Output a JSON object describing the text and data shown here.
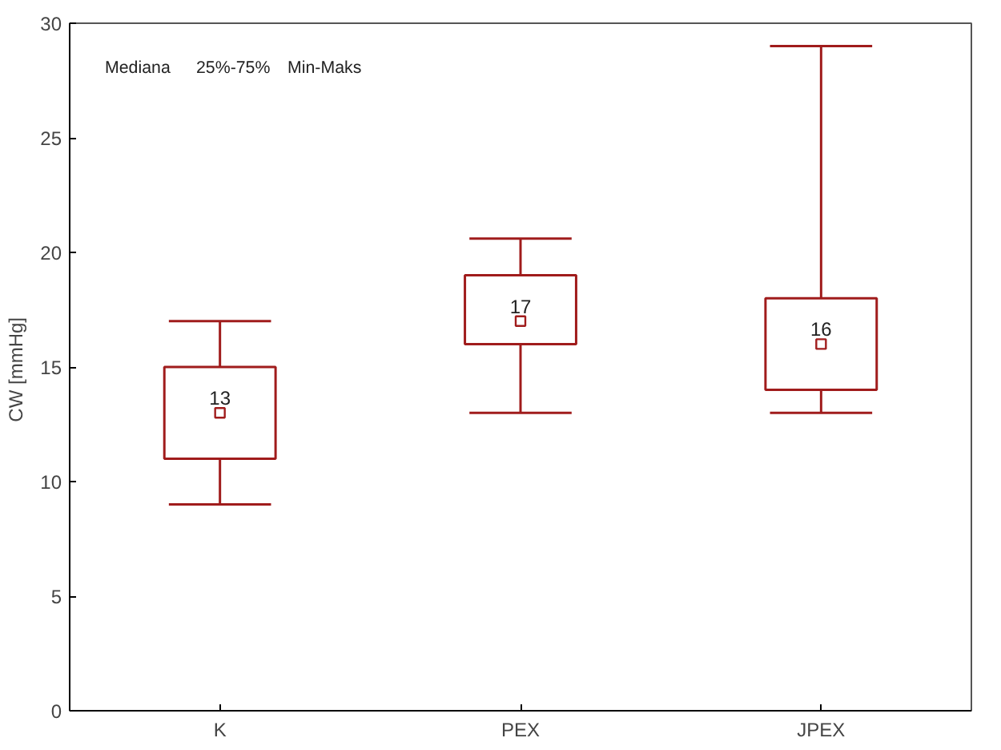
{
  "chart_data": {
    "type": "box",
    "ylabel": "CW  [mmHg]",
    "categories": [
      "K",
      "PEX",
      "JPEX"
    ],
    "boxes": [
      {
        "low": 9,
        "q1": 11,
        "median": 13,
        "q3": 15,
        "high": 17
      },
      {
        "low": 13,
        "q1": 16,
        "median": 17,
        "q3": 19,
        "high": 20.6
      },
      {
        "low": 13,
        "q1": 14,
        "median": 16,
        "q3": 18,
        "high": 29
      }
    ],
    "value_labels": [
      "13",
      "17",
      "16"
    ],
    "color": "#a01c1c",
    "ylim": [
      0,
      30
    ],
    "yticks": [
      0,
      5,
      10,
      15,
      20,
      25,
      30
    ],
    "grid": false,
    "annotations": [
      "Mediana",
      "25%-75%",
      "Min-Maks"
    ]
  }
}
